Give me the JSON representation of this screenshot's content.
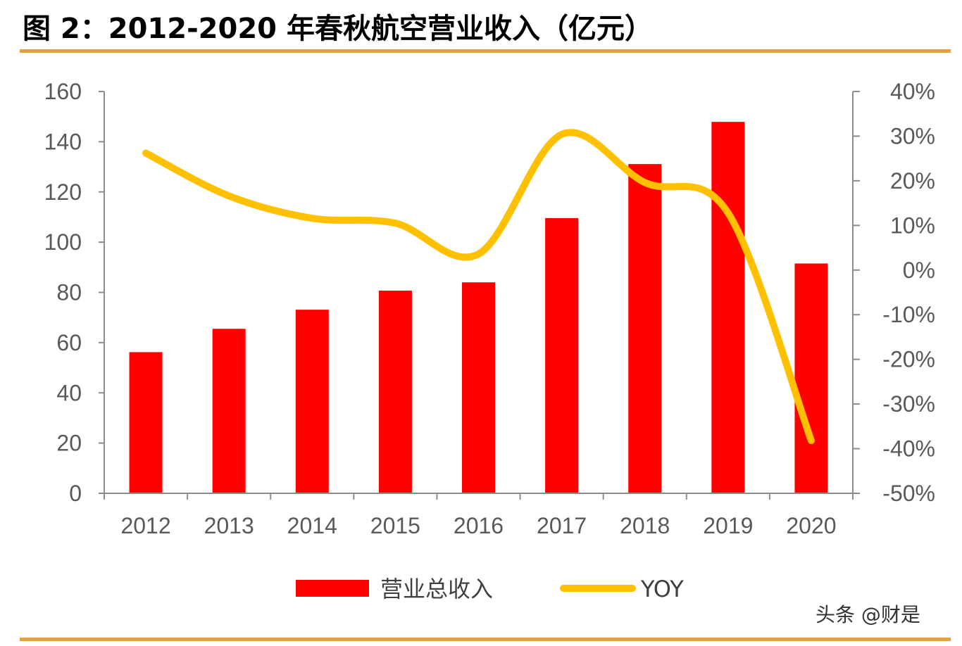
{
  "title": "图 2：2012-2020 年春秋航空营业收入（亿元）",
  "watermark": "头条 @财是",
  "chart_data": {
    "type": "bar",
    "title": "图 2：2012-2020 年春秋航空营业收入（亿元）",
    "categories": [
      "2012",
      "2013",
      "2014",
      "2015",
      "2016",
      "2017",
      "2018",
      "2019",
      "2020"
    ],
    "series": [
      {
        "name": "营业总收入",
        "type": "bar",
        "axis": "left",
        "color": "#FF0000",
        "values": [
          56.2,
          65.5,
          73.1,
          80.7,
          84.0,
          109.6,
          131.1,
          147.9,
          91.5
        ]
      },
      {
        "name": "YOY",
        "type": "line",
        "axis": "right",
        "color": "#FFC000",
        "values": [
          26.2,
          16.6,
          11.6,
          10.5,
          3.6,
          30.4,
          19.6,
          12.8,
          -38.2
        ]
      }
    ],
    "y_left": {
      "min": 0,
      "max": 160,
      "step": 20,
      "ticks": [
        "0",
        "20",
        "40",
        "60",
        "80",
        "100",
        "120",
        "140",
        "160"
      ]
    },
    "y_right": {
      "min": -50,
      "max": 40,
      "step": 10,
      "ticks": [
        "-50%",
        "-40%",
        "-30%",
        "-20%",
        "-10%",
        "0%",
        "10%",
        "20%",
        "30%",
        "40%"
      ]
    },
    "legend": {
      "position": "bottom",
      "items": [
        "营业总收入",
        "YOY"
      ]
    },
    "grid": false
  }
}
